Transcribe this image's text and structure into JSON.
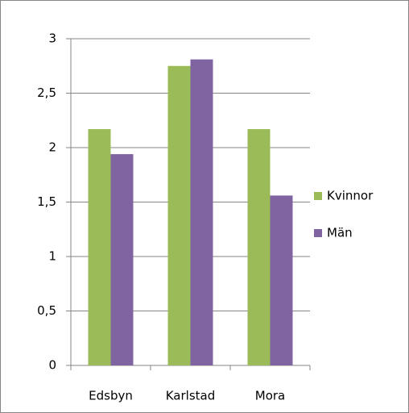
{
  "chart_data": {
    "type": "bar",
    "categories": [
      "Edsbyn",
      "Karlstad",
      "Mora"
    ],
    "series": [
      {
        "name": "Kvinnor",
        "color": "#9bbb59",
        "values": [
          2.17,
          2.75,
          2.17
        ]
      },
      {
        "name": "Män",
        "color": "#8064a2",
        "values": [
          1.94,
          2.81,
          1.56
        ]
      }
    ],
    "ylim": [
      0,
      3
    ],
    "yticks": [
      0,
      {
        "value": 0.5,
        "label": "0,5"
      },
      1,
      {
        "value": 1.5,
        "label": "1,5"
      },
      2,
      {
        "value": 2.5,
        "label": "2,5"
      },
      3
    ],
    "grid": true,
    "legend": "right"
  }
}
